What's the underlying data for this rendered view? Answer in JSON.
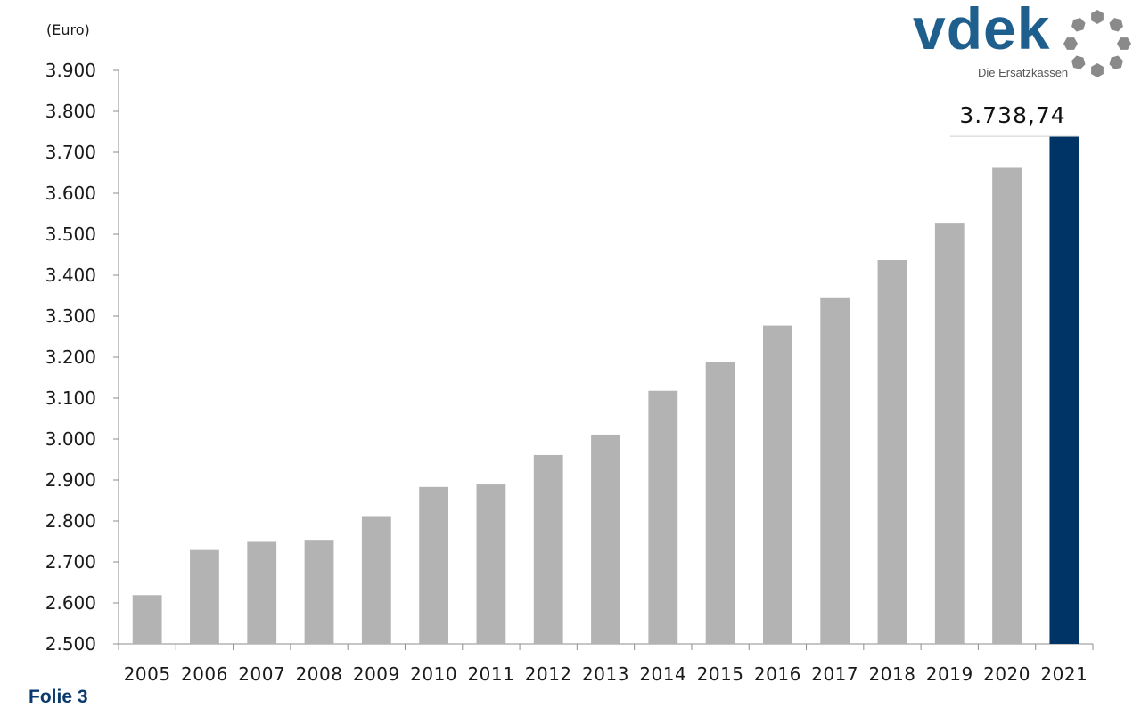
{
  "chart_data": {
    "type": "bar",
    "unit_label": "(Euro)",
    "categories": [
      "2005",
      "2006",
      "2007",
      "2008",
      "2009",
      "2010",
      "2011",
      "2012",
      "2013",
      "2014",
      "2015",
      "2016",
      "2017",
      "2018",
      "2019",
      "2020",
      "2021"
    ],
    "values": [
      2619,
      2729,
      2749,
      2754,
      2812,
      2883,
      2889,
      2961,
      3011,
      3118,
      3189,
      3277,
      3344,
      3437,
      3528,
      3662,
      3738.74
    ],
    "yticks": [
      "2.500",
      "2.600",
      "2.700",
      "2.800",
      "2.900",
      "3.000",
      "3.100",
      "3.200",
      "3.300",
      "3.400",
      "3.500",
      "3.600",
      "3.700",
      "3.800",
      "3.900"
    ],
    "ylim": [
      2500,
      3900
    ],
    "highlight": {
      "category": "2021",
      "label": "3.738,74"
    },
    "colors": {
      "bar": "#b3b3b3",
      "highlight": "#003366"
    },
    "grid": false
  },
  "footer": {
    "label": "Folie 3"
  },
  "logo": {
    "text": "vdek",
    "subtitle": "Die Ersatzkassen",
    "icon": "vdek-ring-logo",
    "color": "#1f5f8e"
  }
}
